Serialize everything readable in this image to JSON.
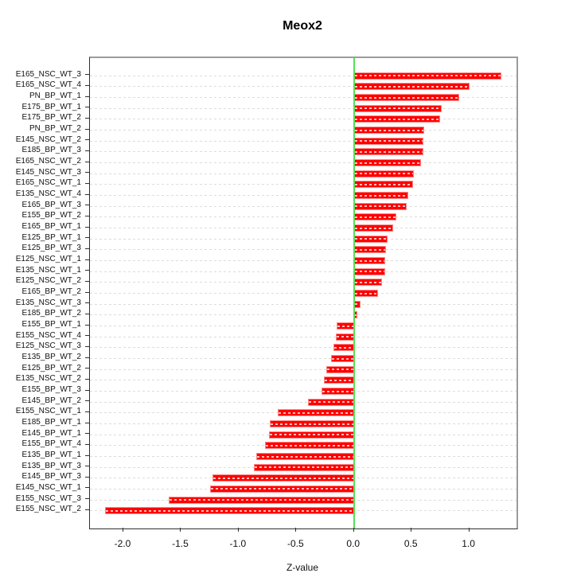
{
  "chart_data": {
    "type": "bar",
    "orientation": "horizontal",
    "title": "Meox2",
    "xlabel": "Z-value",
    "ylabel": "",
    "legend": null,
    "grid": "dashed-horizontal-per-row",
    "zero_line_color": "#55e055",
    "bar_color": "#ff0000",
    "bar_border_color": "#ff9696",
    "xlim": [
      -2.29,
      1.41
    ],
    "xticks": [
      -2.0,
      -1.5,
      -1.0,
      -0.5,
      0.0,
      0.5,
      1.0
    ],
    "xtick_labels": [
      "-2.0",
      "-1.5",
      "-1.0",
      "-0.5",
      "0.0",
      "0.5",
      "1.0"
    ],
    "categories": [
      "E165_NSC_WT_3",
      "E165_NSC_WT_4",
      "PN_BP_WT_1",
      "E175_BP_WT_1",
      "E175_BP_WT_2",
      "PN_BP_WT_2",
      "E145_NSC_WT_2",
      "E185_BP_WT_3",
      "E165_NSC_WT_2",
      "E145_NSC_WT_3",
      "E165_NSC_WT_1",
      "E135_NSC_WT_4",
      "E165_BP_WT_3",
      "E155_BP_WT_2",
      "E165_BP_WT_1",
      "E125_BP_WT_1",
      "E125_BP_WT_3",
      "E125_NSC_WT_1",
      "E135_NSC_WT_1",
      "E125_NSC_WT_2",
      "E165_BP_WT_2",
      "E135_NSC_WT_3",
      "E185_BP_WT_2",
      "E155_BP_WT_1",
      "E155_NSC_WT_4",
      "E125_NSC_WT_3",
      "E135_BP_WT_2",
      "E125_BP_WT_2",
      "E135_NSC_WT_2",
      "E155_BP_WT_3",
      "E145_BP_WT_2",
      "E155_NSC_WT_1",
      "E185_BP_WT_1",
      "E145_BP_WT_1",
      "E155_BP_WT_4",
      "E135_BP_WT_1",
      "E135_BP_WT_3",
      "E145_BP_WT_3",
      "E145_NSC_WT_1",
      "E155_NSC_WT_3",
      "E155_NSC_WT_2"
    ],
    "values": [
      1.28,
      1.0,
      0.91,
      0.76,
      0.75,
      0.61,
      0.6,
      0.6,
      0.58,
      0.52,
      0.51,
      0.47,
      0.46,
      0.37,
      0.34,
      0.29,
      0.28,
      0.27,
      0.27,
      0.24,
      0.21,
      0.06,
      0.03,
      -0.15,
      -0.16,
      -0.18,
      -0.2,
      -0.24,
      -0.26,
      -0.28,
      -0.4,
      -0.66,
      -0.73,
      -0.74,
      -0.77,
      -0.85,
      -0.87,
      -1.23,
      -1.25,
      -1.61,
      -2.16
    ]
  }
}
